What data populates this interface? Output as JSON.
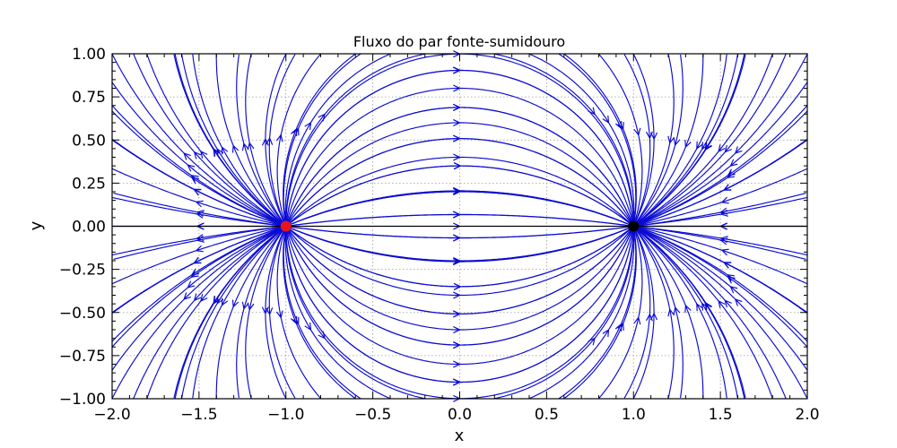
{
  "chart_data": {
    "type": "streamplot",
    "title": "Fluxo do par fonte-sumidouro",
    "xlabel": "x",
    "ylabel": "y",
    "xlim": [
      -2.0,
      2.0
    ],
    "ylim": [
      -1.0,
      1.0
    ],
    "xticks": [
      -2.0,
      -1.5,
      -1.0,
      -0.5,
      0.0,
      0.5,
      1.0,
      1.5,
      2.0
    ],
    "yticks": [
      -1.0,
      -0.75,
      -0.5,
      -0.25,
      0.0,
      0.25,
      0.5,
      0.75,
      1.0
    ],
    "xtick_labels": [
      "−2.0",
      "−1.5",
      "−1.0",
      "−0.5",
      "0.0",
      "0.5",
      "1.0",
      "1.5",
      "2.0"
    ],
    "ytick_labels": [
      "−1.00",
      "−0.75",
      "−0.50",
      "−0.25",
      "0.00",
      "0.25",
      "0.50",
      "0.75",
      "1.00"
    ],
    "grid": true,
    "flow": {
      "source": {
        "x": -1.0,
        "y": 0.0,
        "strength": 1.0,
        "color": "#e8141e"
      },
      "sink": {
        "x": 1.0,
        "y": 0.0,
        "strength": -1.0,
        "color": "#000000"
      }
    },
    "stream_color": "#0a0ad2",
    "marker_size": 6
  }
}
